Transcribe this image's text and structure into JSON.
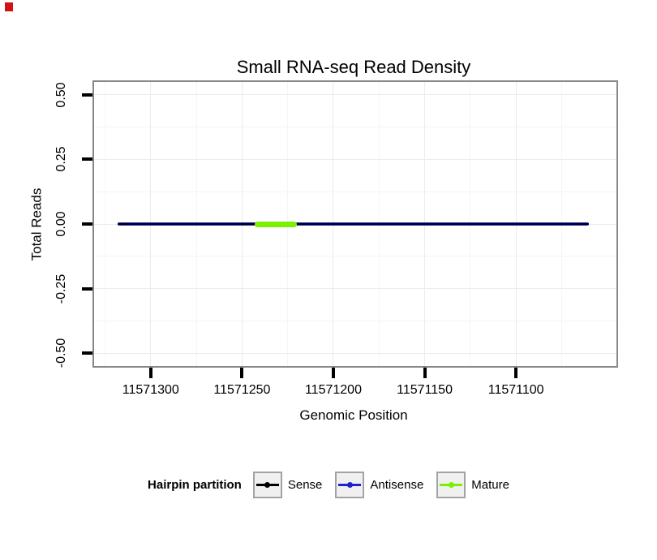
{
  "chart_data": {
    "type": "line",
    "title": "Small RNA-seq Read Density",
    "xlabel": "Genomic Position",
    "ylabel": "Total Reads",
    "grid": true,
    "legend_position": "bottom",
    "x_axis": {
      "reversed": true,
      "domain": [
        11571331,
        11571045
      ],
      "ticks": [
        11571300,
        11571250,
        11571200,
        11571150,
        11571100
      ],
      "tick_labels": [
        "11571300",
        "11571250",
        "11571200",
        "11571150",
        "11571100"
      ],
      "minor": [
        11571325,
        11571275,
        11571225,
        11571175,
        11571125,
        11571075
      ]
    },
    "y_axis": {
      "domain": [
        -0.55,
        0.55
      ],
      "ticks": [
        0.5,
        0.25,
        0,
        -0.25,
        -0.5
      ],
      "tick_labels": [
        "0.50",
        "0.25",
        "0.00",
        "-0.25",
        "-0.50"
      ],
      "minor": [
        0.375,
        0.125,
        -0.125,
        -0.375
      ]
    },
    "series": [
      {
        "name": "Antisense",
        "color": "#2222cc",
        "y": 0,
        "x_start": 11571318,
        "x_end": 11571060,
        "line_width": 4
      },
      {
        "name": "Sense",
        "color": "#000000",
        "y": 0,
        "x_start": 11571318,
        "x_end": 11571060,
        "line_width": 2.4
      },
      {
        "name": "Mature",
        "color": "#7cf000",
        "y": 0,
        "x_start": 11571243,
        "x_end": 11571220,
        "line_width": 7
      }
    ],
    "legend": {
      "title": "Hairpin partition",
      "entries": [
        {
          "label": "Sense",
          "color": "#000000"
        },
        {
          "label": "Antisense",
          "color": "#2222cc"
        },
        {
          "label": "Mature",
          "color": "#7cf000"
        }
      ]
    },
    "theme": {
      "background": "#ffffff",
      "panel_border": "#878787",
      "grid_major": "#ebebeb",
      "grid_minor": "#f5f5f5",
      "tick": "#000000",
      "legend_key_fill": "#f0f0f0",
      "legend_key_border": "#a3a3a3",
      "corner_mark": "#d41111"
    }
  }
}
